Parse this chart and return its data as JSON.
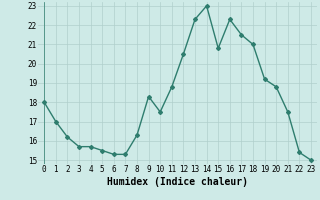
{
  "x": [
    0,
    1,
    2,
    3,
    4,
    5,
    6,
    7,
    8,
    9,
    10,
    11,
    12,
    13,
    14,
    15,
    16,
    17,
    18,
    19,
    20,
    21,
    22,
    23
  ],
  "y": [
    18.0,
    17.0,
    16.2,
    15.7,
    15.7,
    15.5,
    15.3,
    15.3,
    16.3,
    18.3,
    17.5,
    18.8,
    20.5,
    22.3,
    23.0,
    20.8,
    22.3,
    21.5,
    21.0,
    19.2,
    18.8,
    17.5,
    15.4,
    15.0
  ],
  "line_color": "#2e7d6e",
  "marker": "D",
  "marker_size": 2,
  "bg_color": "#ceeae7",
  "grid_color": "#b0cfcc",
  "xlabel": "Humidex (Indice chaleur)",
  "xlabel_fontsize": 7,
  "ylim": [
    14.8,
    23.2
  ],
  "xlim": [
    -0.5,
    23.5
  ],
  "yticks": [
    15,
    16,
    17,
    18,
    19,
    20,
    21,
    22,
    23
  ],
  "xticks": [
    0,
    1,
    2,
    3,
    4,
    5,
    6,
    7,
    8,
    9,
    10,
    11,
    12,
    13,
    14,
    15,
    16,
    17,
    18,
    19,
    20,
    21,
    22,
    23
  ],
  "tick_fontsize": 5.5,
  "line_width": 1.0
}
